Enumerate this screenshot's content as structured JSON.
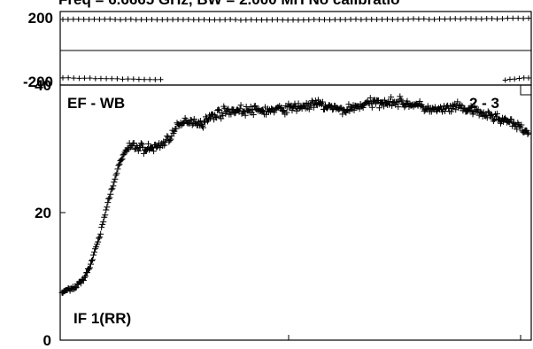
{
  "chart_data": [
    {
      "type": "scatter",
      "panel": "phase",
      "title": "Freq = 6.6665 GHz, BW = 2.000 MH   No calibratio",
      "ylim": [
        -200,
        200
      ],
      "yticks": [
        {
          "value": 200,
          "label": "200"
        },
        {
          "value": -200,
          "label": "-200"
        }
      ],
      "grid": false,
      "series": [
        {
          "segment": "upper",
          "x_range": [
            0,
            1
          ],
          "y_start": 190,
          "y_mid": 186,
          "y_end": 196,
          "jitter": 2.5
        },
        {
          "segment": "lower-left",
          "x_range": [
            0,
            0.21
          ],
          "y_start": -178,
          "y_end": -188,
          "jitter": 3
        },
        {
          "segment": "lower-right",
          "x_range": [
            0.95,
            1
          ],
          "y_start": -190,
          "y_end": -176,
          "jitter": 3
        }
      ]
    },
    {
      "type": "scatter",
      "panel": "amplitude",
      "ylim": [
        0,
        40
      ],
      "yticks": [
        {
          "value": 0,
          "label": "0"
        },
        {
          "value": 20,
          "label": "20"
        },
        {
          "value": 40,
          "label": "40"
        }
      ],
      "grid": false,
      "annotations": {
        "baseline": "EF - WB",
        "pair": "2 - 3",
        "if": "IF 1(RR)"
      },
      "curve": [
        [
          0.0,
          7.5
        ],
        [
          0.02,
          8.0
        ],
        [
          0.04,
          9.0
        ],
        [
          0.06,
          11.5
        ],
        [
          0.08,
          16.0
        ],
        [
          0.1,
          22.0
        ],
        [
          0.12,
          27.0
        ],
        [
          0.135,
          29.5
        ],
        [
          0.15,
          30.5
        ],
        [
          0.18,
          30.0
        ],
        [
          0.2,
          30.2
        ],
        [
          0.22,
          31.0
        ],
        [
          0.25,
          33.5
        ],
        [
          0.27,
          34.5
        ],
        [
          0.3,
          34.0
        ],
        [
          0.33,
          35.5
        ],
        [
          0.36,
          36.0
        ],
        [
          0.4,
          36.0
        ],
        [
          0.45,
          36.0
        ],
        [
          0.5,
          36.5
        ],
        [
          0.55,
          37.0
        ],
        [
          0.6,
          36.0
        ],
        [
          0.65,
          37.0
        ],
        [
          0.7,
          37.5
        ],
        [
          0.75,
          37.0
        ],
        [
          0.8,
          36.0
        ],
        [
          0.85,
          36.5
        ],
        [
          0.9,
          35.5
        ],
        [
          0.95,
          34.5
        ],
        [
          1.0,
          32.5
        ]
      ],
      "jitter": 1.1,
      "points": 520
    }
  ]
}
